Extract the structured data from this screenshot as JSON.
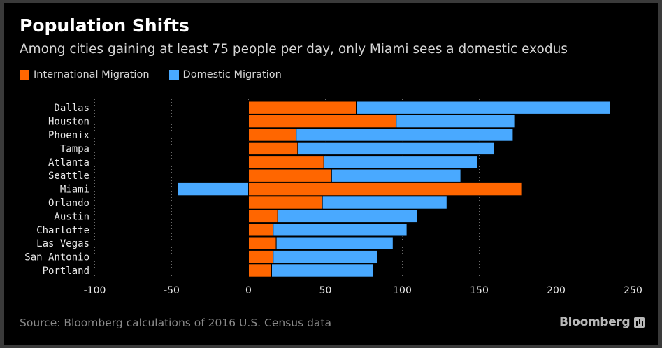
{
  "chart_data": {
    "type": "bar",
    "orientation": "horizontal",
    "stacked": true,
    "title": "Population Shifts",
    "subtitle": "Among cities gaining at least 75 people per day, only Miami sees a domestic exodus",
    "categories": [
      "Dallas",
      "Houston",
      "Phoenix",
      "Tampa",
      "Atlanta",
      "Seattle",
      "Miami",
      "Orlando",
      "Austin",
      "Charlotte",
      "Las Vegas",
      "San Antonio",
      "Portland"
    ],
    "series": [
      {
        "name": "International Migration",
        "color": "#ff6600",
        "values": [
          70,
          96,
          31,
          32,
          49,
          54,
          178,
          48,
          19,
          16,
          18,
          16,
          15
        ]
      },
      {
        "name": "Domestic Migration",
        "color": "#49a9ff",
        "values": [
          165,
          77,
          141,
          128,
          100,
          84,
          -46,
          81,
          91,
          87,
          76,
          68,
          66
        ]
      }
    ],
    "xticks": [
      -100,
      -50,
      0,
      50,
      100,
      150,
      200,
      250
    ],
    "xlim": [
      -100,
      250
    ],
    "grid": true,
    "legend_position": "top-left",
    "xlabel": "",
    "ylabel": ""
  },
  "footer": {
    "source": "Source: Bloomberg calculations of 2016 U.S. Census data",
    "brand": "Bloomberg"
  }
}
